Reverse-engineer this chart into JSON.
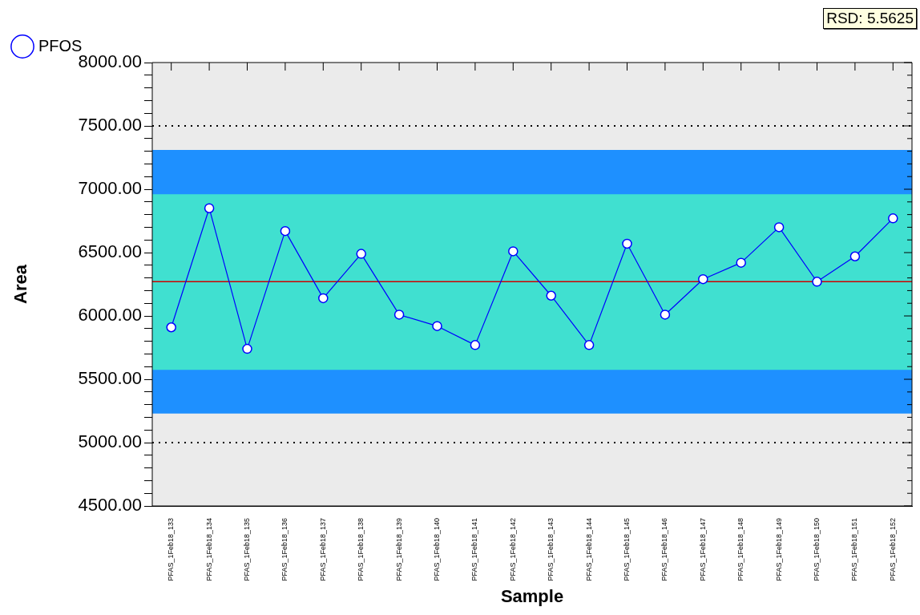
{
  "chart_data": {
    "type": "line",
    "xlabel": "Sample",
    "ylabel": "Area",
    "categories": [
      "PFAS_1Feb18_133",
      "PFAS_1Feb18_134",
      "PFAS_1Feb18_135",
      "PFAS_1Feb18_136",
      "PFAS_1Feb18_137",
      "PFAS_1Feb18_138",
      "PFAS_1Feb18_139",
      "PFAS_1Feb18_140",
      "PFAS_1Feb18_141",
      "PFAS_1Feb18_142",
      "PFAS_1Feb18_143",
      "PFAS_1Feb18_144",
      "PFAS_1Feb18_145",
      "PFAS_1Feb18_146",
      "PFAS_1Feb18_147",
      "PFAS_1Feb18_148",
      "PFAS_1Feb18_149",
      "PFAS_1Feb18_150",
      "PFAS_1Feb18_151",
      "PFAS_1Feb18_152"
    ],
    "series": [
      {
        "name": "PFOS",
        "color": "#0000ff",
        "values": [
          5910,
          6850,
          5740,
          6670,
          6140,
          6490,
          6010,
          5920,
          5770,
          6510,
          6160,
          5770,
          6570,
          6010,
          6290,
          6420,
          6700,
          6270,
          6470,
          6770
        ]
      }
    ],
    "ylim": [
      4500,
      8000
    ],
    "yticks": [
      {
        "value": 4500,
        "label": "4500.00"
      },
      {
        "value": 4600,
        "label": null
      },
      {
        "value": 4700,
        "label": null
      },
      {
        "value": 4800,
        "label": null
      },
      {
        "value": 4900,
        "label": null
      },
      {
        "value": 5000,
        "label": "5000.00"
      },
      {
        "value": 5100,
        "label": null
      },
      {
        "value": 5200,
        "label": null
      },
      {
        "value": 5300,
        "label": null
      },
      {
        "value": 5400,
        "label": null
      },
      {
        "value": 5500,
        "label": "5500.00"
      },
      {
        "value": 5600,
        "label": null
      },
      {
        "value": 5700,
        "label": null
      },
      {
        "value": 5800,
        "label": null
      },
      {
        "value": 5900,
        "label": null
      },
      {
        "value": 6000,
        "label": "6000.00"
      },
      {
        "value": 6100,
        "label": null
      },
      {
        "value": 6200,
        "label": null
      },
      {
        "value": 6300,
        "label": null
      },
      {
        "value": 6400,
        "label": null
      },
      {
        "value": 6500,
        "label": "6500.00"
      },
      {
        "value": 6600,
        "label": null
      },
      {
        "value": 6700,
        "label": null
      },
      {
        "value": 6800,
        "label": null
      },
      {
        "value": 6900,
        "label": null
      },
      {
        "value": 7000,
        "label": "7000.00"
      },
      {
        "value": 7100,
        "label": null
      },
      {
        "value": 7200,
        "label": null
      },
      {
        "value": 7300,
        "label": null
      },
      {
        "value": 7400,
        "label": null
      },
      {
        "value": 7500,
        "label": "7500.00"
      },
      {
        "value": 7600,
        "label": null
      },
      {
        "value": 7700,
        "label": null
      },
      {
        "value": 7800,
        "label": null
      },
      {
        "value": 7900,
        "label": null
      },
      {
        "value": 8000,
        "label": "8000.00"
      }
    ],
    "bands": [
      {
        "axis": "y",
        "from": 5230,
        "to": 7310,
        "color": "#1e90ff"
      },
      {
        "axis": "y",
        "from": 5575,
        "to": 6960,
        "color": "#40e0d0"
      }
    ],
    "ref_lines": [
      {
        "axis": "y",
        "value": 6270,
        "color": "#cc0000",
        "line_style": "solid"
      },
      {
        "axis": "y",
        "value": 7500,
        "color": "#000000",
        "line_style": "dotted"
      },
      {
        "axis": "y",
        "value": 5000,
        "color": "#000000",
        "line_style": "dotted"
      }
    ],
    "annotations": [
      "RSD: 5.5625"
    ],
    "legend": "top left",
    "marker": "circle",
    "line_style": "solid",
    "grid": false
  }
}
